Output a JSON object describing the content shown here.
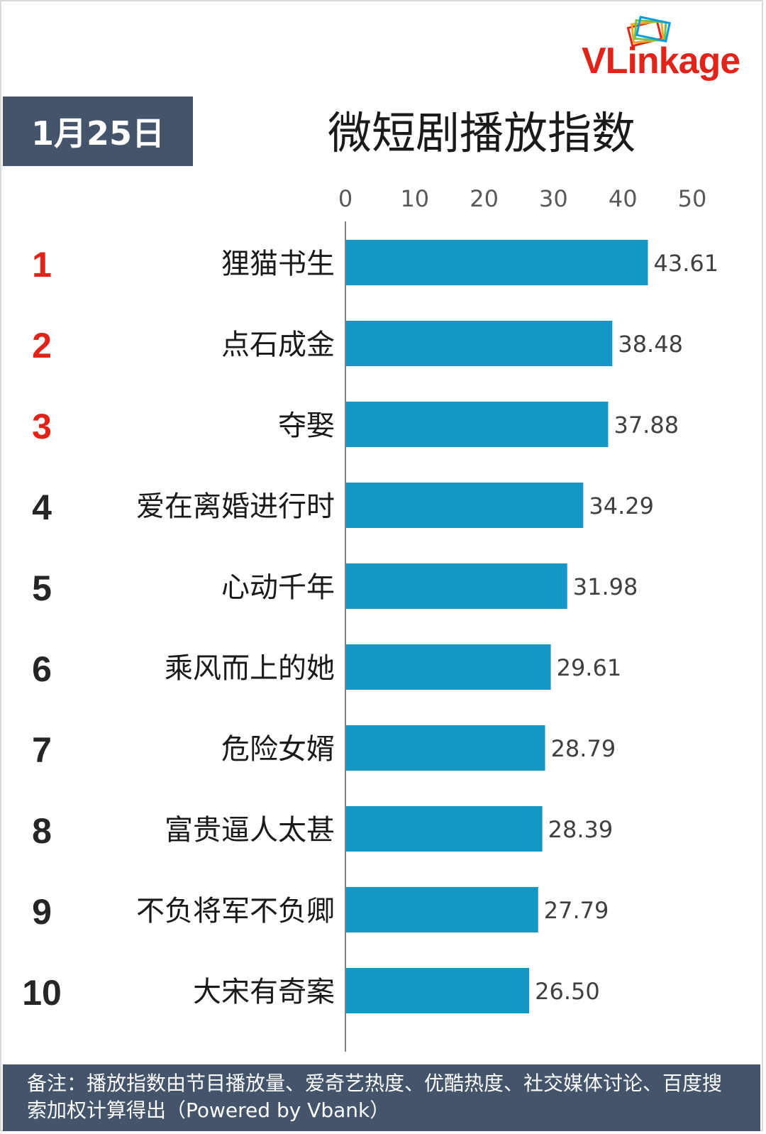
{
  "header": {
    "date_label": "1月25日",
    "logo_text": "VLinkage"
  },
  "footer": {
    "note": "备注：播放指数由节目播放量、爱奇艺热度、优酷热度、社交媒体讨论、百度搜索加权计算得出（Powered by Vbank）"
  },
  "colors": {
    "bar": "#1497c7",
    "top_rank": "#e2231a",
    "rank": "#262626",
    "header_bg": "#44546a",
    "logo": "#e2231a"
  },
  "chart_data": {
    "type": "bar",
    "orientation": "horizontal",
    "title": "微短剧播放指数",
    "xlim": [
      0,
      50
    ],
    "xticks": [
      "0",
      "10",
      "20",
      "30",
      "40",
      "50"
    ],
    "grid": false,
    "ranks": [
      "1",
      "2",
      "3",
      "4",
      "5",
      "6",
      "7",
      "8",
      "9",
      "10"
    ],
    "categories": [
      "狸猫书生",
      "点石成金",
      "夺娶",
      "爱在离婚进行时",
      "心动千年",
      "乘风而上的她",
      "危险女婿",
      "富贵逼人太甚",
      "不负将军不负卿",
      "大宋有奇案"
    ],
    "values": [
      43.61,
      38.48,
      37.88,
      34.29,
      31.98,
      29.61,
      28.79,
      28.39,
      27.79,
      26.5
    ],
    "value_labels": [
      "43.61",
      "38.48",
      "37.88",
      "34.29",
      "31.98",
      "29.61",
      "28.79",
      "28.39",
      "27.79",
      "26.50"
    ]
  }
}
